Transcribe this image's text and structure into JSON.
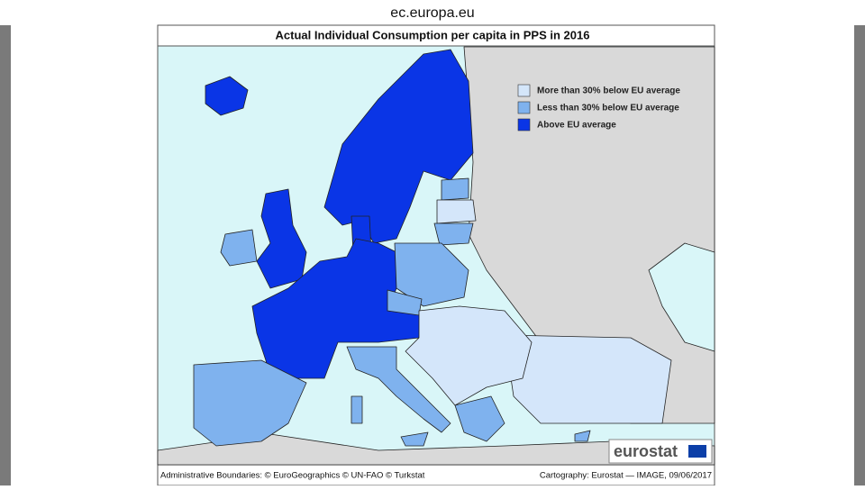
{
  "browser": {
    "url": "ec.europa.eu"
  },
  "map": {
    "title": "Actual Individual Consumption per capita in PPS in 2016",
    "legend": [
      {
        "label": "More than 30% below EU average",
        "color": "#d4e6fa"
      },
      {
        "label": "Less than 30% below EU average",
        "color": "#7fb2ee"
      },
      {
        "label": "Above EU average",
        "color": "#0a35e6"
      }
    ],
    "logo": "eurostat",
    "footer_left": "Administrative Boundaries: © EuroGeographics © UN-FAO © Turkstat",
    "footer_right": "Cartography: Eurostat — IMAGE, 09/06/2017"
  }
}
